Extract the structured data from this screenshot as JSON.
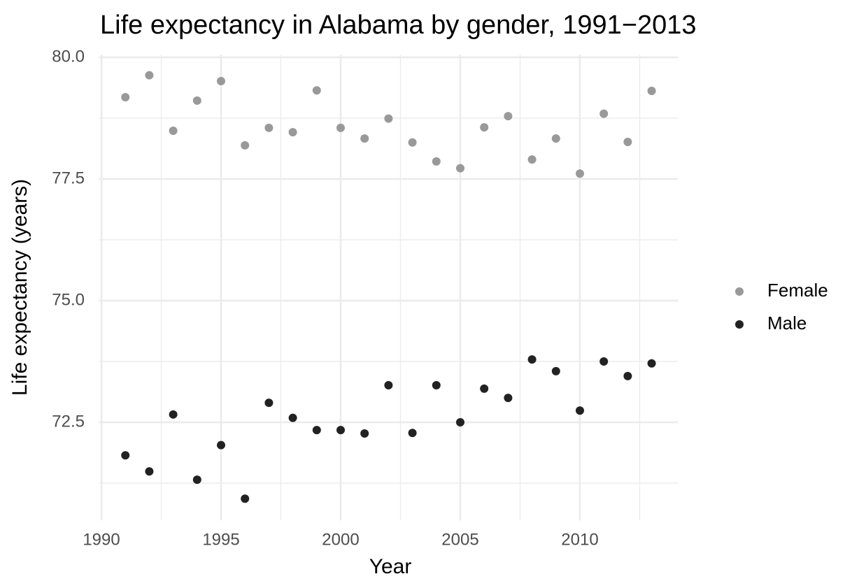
{
  "chart_data": {
    "type": "scatter",
    "title": "Life expectancy in Alabama by gender, 1991−2013",
    "x_label": "Year",
    "y_label": "Life expectancy (years)",
    "x": [
      1991,
      1992,
      1993,
      1994,
      1995,
      1996,
      1997,
      1998,
      1999,
      2000,
      2001,
      2002,
      2003,
      2004,
      2005,
      2006,
      2007,
      2008,
      2009,
      2010,
      2011,
      2012,
      2013
    ],
    "series": [
      {
        "name": "Female",
        "color": "#999999",
        "values": [
          79.18,
          79.63,
          78.49,
          79.11,
          79.51,
          78.19,
          78.55,
          78.46,
          79.32,
          78.55,
          78.33,
          78.74,
          78.25,
          77.86,
          77.72,
          78.56,
          78.79,
          77.9,
          78.33,
          77.61,
          78.84,
          78.26,
          79.31
        ]
      },
      {
        "name": "Male",
        "color": "#222222",
        "values": [
          71.82,
          71.49,
          72.66,
          71.32,
          72.03,
          70.93,
          72.9,
          72.59,
          72.34,
          72.34,
          72.27,
          73.26,
          72.28,
          73.26,
          72.5,
          73.19,
          73.0,
          73.79,
          73.55,
          72.74,
          73.75,
          73.45,
          73.71
        ]
      }
    ],
    "xlim": [
      1989.9,
      2014.1
    ],
    "ylim": [
      70.485,
      80.055
    ],
    "xticks": [
      1990,
      1995,
      2000,
      2005,
      2010
    ],
    "yticks": [
      {
        "value": 80,
        "label": "80.0"
      },
      77.5,
      {
        "value": 75,
        "label": "75.0"
      },
      72.5
    ],
    "xminor": [
      1992.5,
      1997.5,
      2002.5,
      2007.5,
      2012.5
    ],
    "yminor": [
      78.75,
      76.25,
      73.75,
      71.25
    ],
    "grid": true,
    "legend": "right"
  }
}
